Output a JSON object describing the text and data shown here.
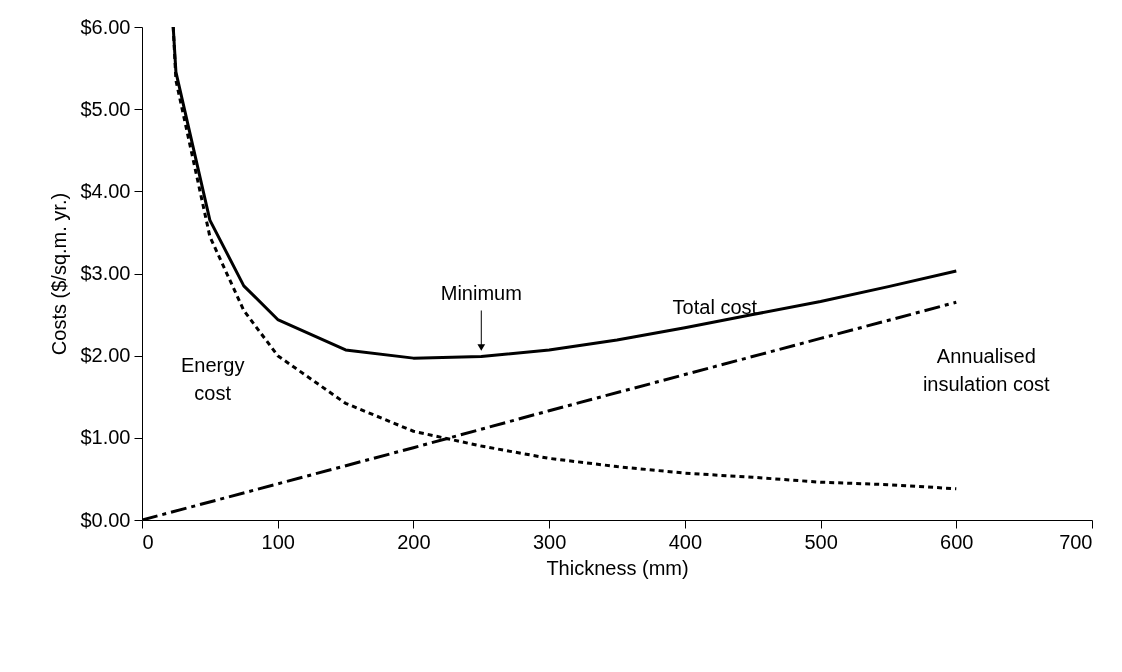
{
  "chart_data": {
    "type": "line",
    "xlabel": "Thickness (mm)",
    "ylabel": "Costs ($/sq.m. yr.)",
    "xlim": [
      0,
      700
    ],
    "xticks": [
      0,
      100,
      200,
      300,
      400,
      500,
      600,
      700
    ],
    "ylim": [
      0,
      6
    ],
    "yticks": [
      {
        "value": 0,
        "label": "$0.00"
      },
      {
        "value": 1,
        "label": "$1.00"
      },
      {
        "value": 2,
        "label": "$2.00"
      },
      {
        "value": 3,
        "label": "$3.00"
      },
      {
        "value": 4,
        "label": "$4.00"
      },
      {
        "value": 5,
        "label": "$5.00"
      },
      {
        "value": 6,
        "label": "$6.00"
      }
    ],
    "grid": false,
    "marker": "none",
    "series": [
      {
        "name": "Total cost",
        "color": "#000000",
        "line_style": "solid",
        "x": [
          23,
          25,
          50,
          75,
          100,
          150,
          200,
          250,
          300,
          350,
          400,
          450,
          500,
          550,
          600
        ],
        "values": [
          6.0,
          5.45,
          3.65,
          2.85,
          2.44,
          2.07,
          1.97,
          1.99,
          2.07,
          2.19,
          2.34,
          2.5,
          2.66,
          2.84,
          3.03
        ]
      },
      {
        "name": "Energy cost",
        "color": "#000000",
        "line_style": "dotted",
        "x": [
          23,
          25,
          50,
          75,
          100,
          150,
          200,
          250,
          300,
          350,
          400,
          450,
          500,
          550,
          600
        ],
        "values": [
          6.0,
          5.35,
          3.45,
          2.55,
          2.0,
          1.42,
          1.08,
          0.9,
          0.75,
          0.65,
          0.57,
          0.52,
          0.46,
          0.43,
          0.38
        ]
      },
      {
        "name": "Annualised insulation cost",
        "color": "#000000",
        "line_style": "dashed",
        "x": [
          0,
          100,
          200,
          300,
          400,
          500,
          600
        ],
        "values": [
          0,
          0.44,
          0.88,
          1.33,
          1.77,
          2.21,
          2.65
        ]
      }
    ],
    "annotations": [
      {
        "text": "Minimum",
        "x": 250,
        "y": 1.99
      }
    ]
  }
}
